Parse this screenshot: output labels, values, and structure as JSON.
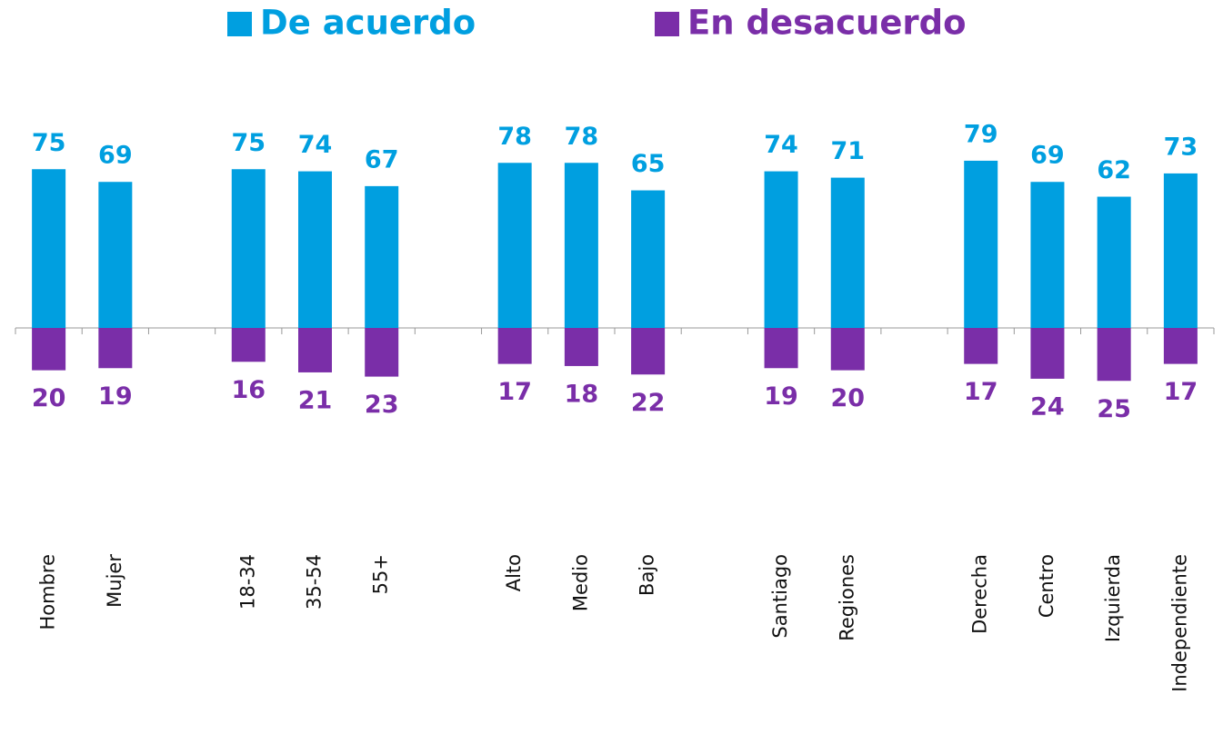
{
  "chart_data": {
    "type": "diverging_bar",
    "categories": [
      "Hombre",
      "Mujer",
      null,
      "18-34",
      "35-54",
      "55+",
      null,
      "Alto",
      "Medio",
      "Bajo",
      null,
      "Santiago",
      "Regiones",
      null,
      "Derecha",
      "Centro",
      "Izquierda",
      "Independiente"
    ],
    "series": [
      {
        "name": "De acuerdo",
        "color": "#009fe0",
        "values": [
          75,
          69,
          null,
          75,
          74,
          67,
          null,
          78,
          78,
          65,
          null,
          74,
          71,
          null,
          79,
          69,
          62,
          73
        ]
      },
      {
        "name": "En desacuerdo",
        "color": "#7a2ea8",
        "values": [
          20,
          19,
          null,
          16,
          21,
          23,
          null,
          17,
          18,
          22,
          null,
          19,
          20,
          null,
          17,
          24,
          25,
          17
        ]
      }
    ]
  }
}
